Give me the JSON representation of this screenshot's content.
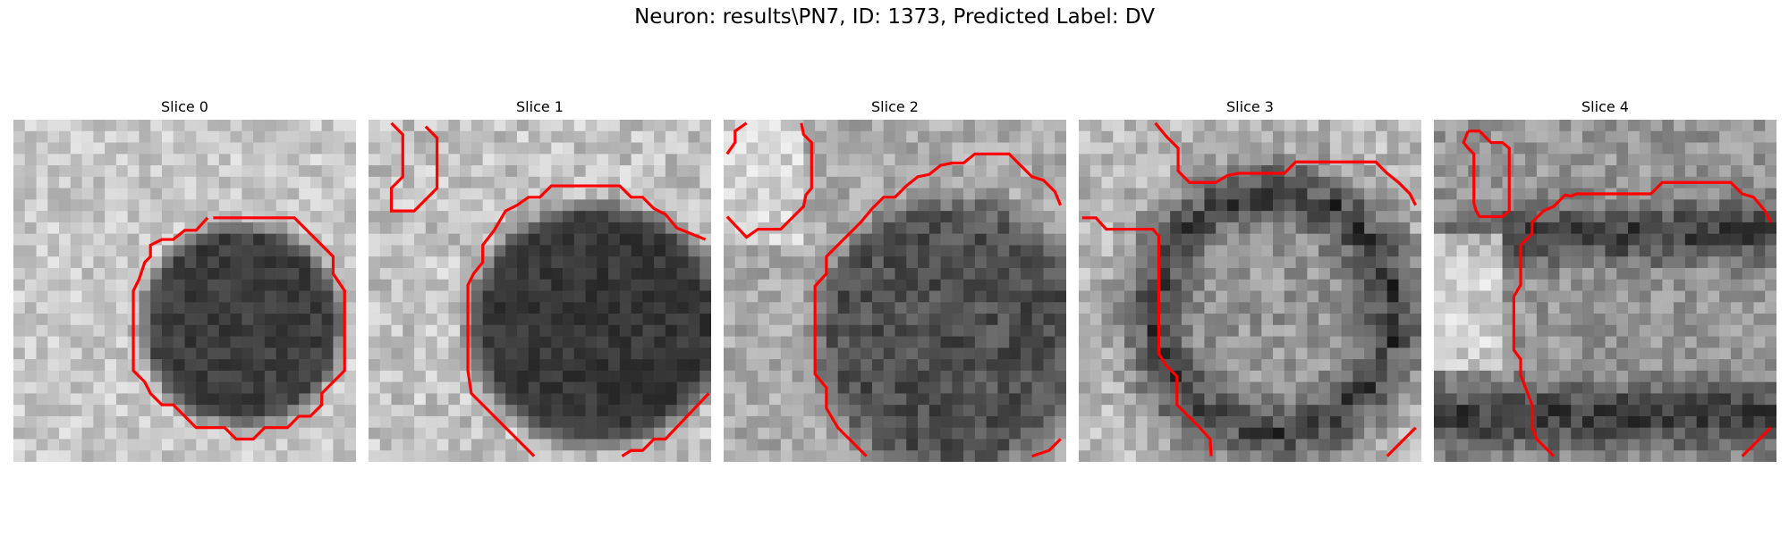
{
  "figure": {
    "title": "Neuron: results\\PN7, ID: 1373, Predicted Label: DV"
  },
  "contour_color": "#ff0000",
  "slices": [
    {
      "label": "Slice 0",
      "content": "dark round cell body centered, single closed red contour around it"
    },
    {
      "label": "Slice 1",
      "content": "large dark cell body at center-right, red contour along upper-left edge, small red loop at top-left"
    },
    {
      "label": "Slice 2",
      "content": "dark cell body, red contour along top and left edge, small red loop at top-left"
    },
    {
      "label": "Slice 3",
      "content": "lighter textured cell interior with dark rim, red contour along top and left"
    },
    {
      "label": "Slice 4",
      "content": "dark bands top and bottom, red contour along left and top, small red loop at top-left"
    }
  ]
}
